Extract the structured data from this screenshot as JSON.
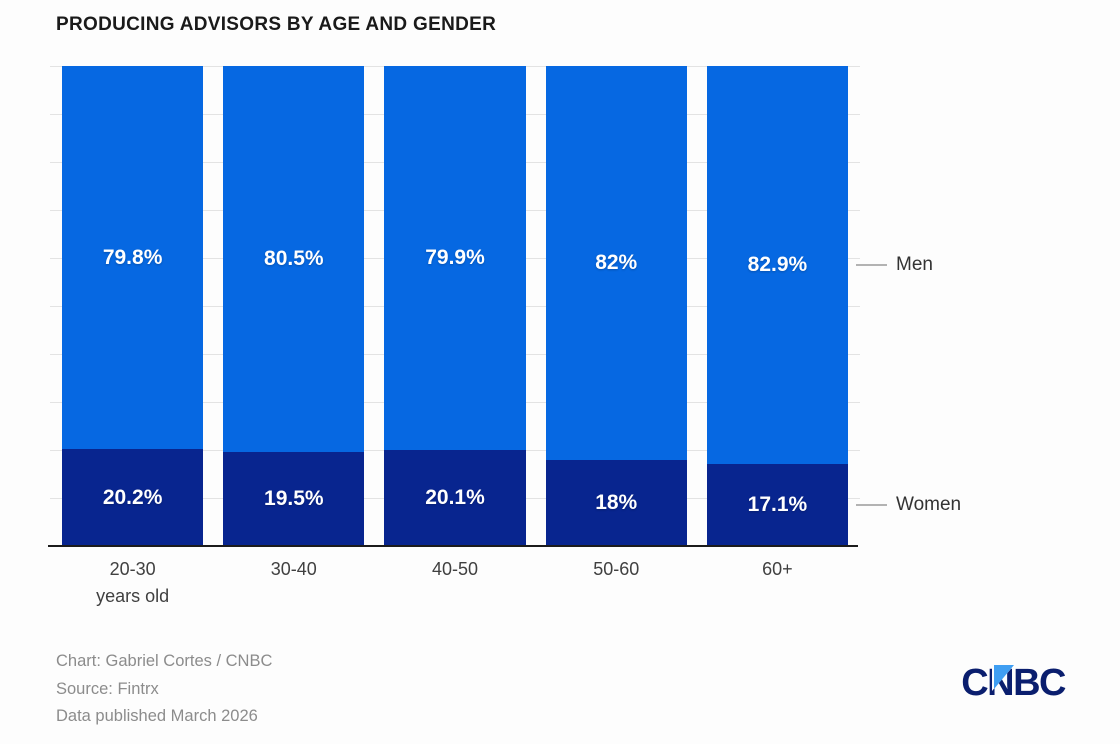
{
  "title": "PRODUCING ADVISORS BY AGE AND GENDER",
  "chart_data": {
    "type": "bar",
    "stacked": true,
    "orientation": "vertical",
    "title": "PRODUCING ADVISORS BY AGE AND GENDER",
    "categories": [
      "20-30 years old",
      "30-40",
      "40-50",
      "50-60",
      "60+"
    ],
    "series": [
      {
        "name": "Men",
        "color": "#0668e2",
        "values": [
          79.8,
          80.5,
          79.9,
          82,
          82.9
        ]
      },
      {
        "name": "Women",
        "color": "#08258f",
        "values": [
          20.2,
          19.5,
          20.1,
          18,
          17.1
        ]
      }
    ],
    "value_format": "percent",
    "data_labels": [
      "79.8%",
      "80.5%",
      "79.9%",
      "82%",
      "82.9%",
      "20.2%",
      "19.5%",
      "20.1%",
      "18%",
      "17.1%"
    ],
    "ylim": [
      0,
      100
    ],
    "grid": "horizontal gridlines every 10%, no y tick labels",
    "legend_position": "right of last bar, aligned with segment centers"
  },
  "legend": {
    "men_label": "Men",
    "women_label": "Women"
  },
  "footer": {
    "line1": "Chart: Gabriel Cortes / CNBC",
    "line2": "Source: Fintrx",
    "line3": "Data published March 2026"
  },
  "logo": {
    "text": "CNBC"
  },
  "colors": {
    "men": "#0668e2",
    "women": "#08258f",
    "gridline": "#e3e3e3",
    "axis": "#1c1c1c",
    "legend_line": "#b3b3b3",
    "logo_navy": "#0a1e6e",
    "logo_blue": "#3f9ef2"
  }
}
